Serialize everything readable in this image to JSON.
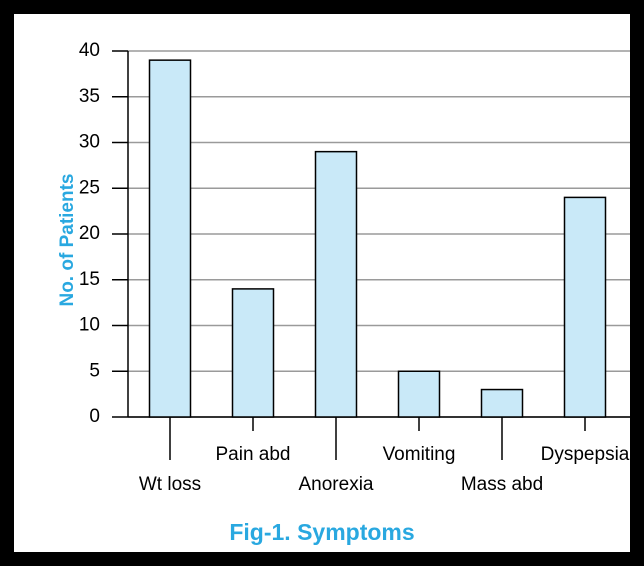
{
  "chart_data": {
    "type": "bar",
    "title": "Fig-1. Symptoms",
    "y_label": "No. of Patients",
    "categories": [
      "Wt loss",
      "Pain abd",
      "Anorexia",
      "Vomiting",
      "Mass abd",
      "Dyspepsia"
    ],
    "values": [
      39,
      14,
      29,
      5,
      3,
      24
    ],
    "color": "#c9e9f8",
    "ylim": [
      0,
      40
    ],
    "yticks": [
      0,
      5,
      10,
      15,
      20,
      25,
      30,
      35,
      40
    ],
    "grid": true
  }
}
